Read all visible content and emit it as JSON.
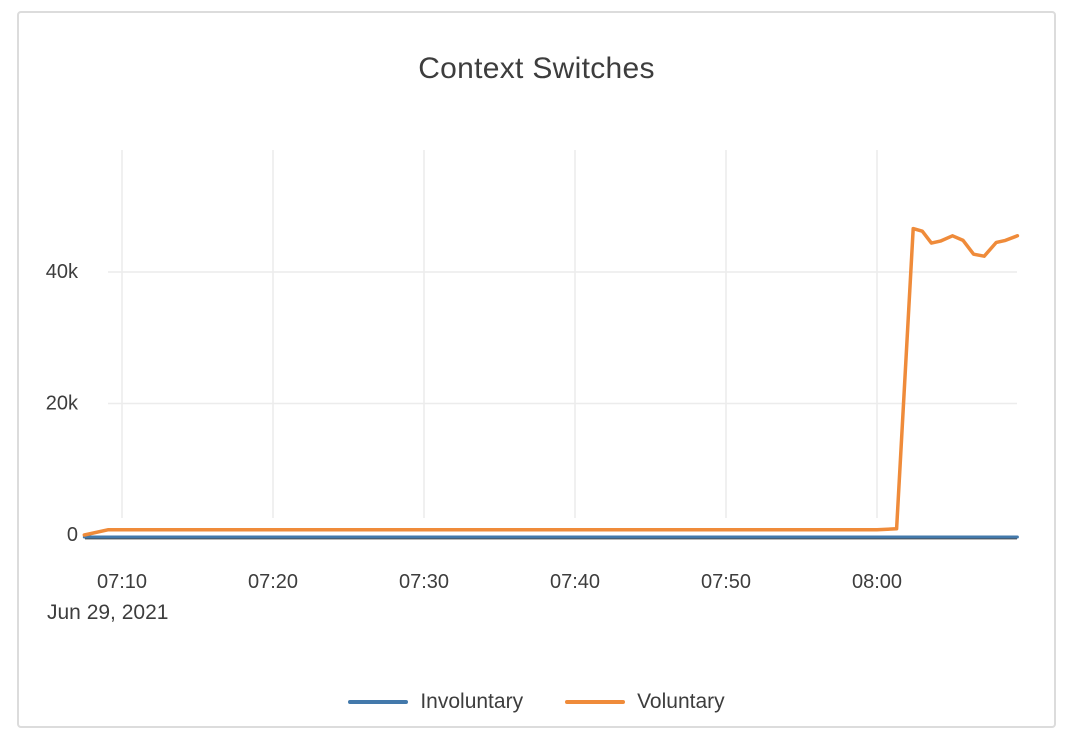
{
  "page": {
    "background": "#ffffff"
  },
  "card": {
    "border_color": "#dcdcdc",
    "background": "#ffffff"
  },
  "chart_data": {
    "type": "line",
    "title": "Context Switches",
    "x_date_label": "Jun 29, 2021",
    "x_unit": "minutes after 07:00, Jun 29 2021",
    "x_ticks": [
      {
        "t": 10,
        "label": "07:10"
      },
      {
        "t": 20,
        "label": "07:20"
      },
      {
        "t": 30,
        "label": "07:30"
      },
      {
        "t": 40,
        "label": "07:40"
      },
      {
        "t": 50,
        "label": "07:50"
      },
      {
        "t": 60,
        "label": "08:00"
      }
    ],
    "y_ticks": [
      {
        "v": 0,
        "label": "0"
      },
      {
        "v": 20000,
        "label": "20k"
      },
      {
        "v": 40000,
        "label": "40k"
      }
    ],
    "x_range": [
      7.5,
      69.3
    ],
    "y_range": [
      0,
      58500
    ],
    "grid": true,
    "legend_position": "bottom-center",
    "colors": {
      "grid": "#ececec",
      "axis_line": "#454545",
      "text": "#3d3d3d"
    },
    "series": [
      {
        "name": "Involuntary",
        "color": "#4379ab",
        "points": [
          [
            7.5,
            0
          ],
          [
            10,
            0
          ],
          [
            15,
            0
          ],
          [
            20,
            0
          ],
          [
            25,
            0
          ],
          [
            30,
            0
          ],
          [
            35,
            0
          ],
          [
            40,
            0
          ],
          [
            45,
            0
          ],
          [
            50,
            0
          ],
          [
            55,
            0
          ],
          [
            60,
            0
          ],
          [
            65,
            0
          ],
          [
            69.3,
            0
          ]
        ]
      },
      {
        "name": "Voluntary",
        "color": "#ef8b3a",
        "points": [
          [
            7.5,
            0
          ],
          [
            9.1,
            800
          ],
          [
            10,
            800
          ],
          [
            15,
            800
          ],
          [
            20,
            800
          ],
          [
            25,
            800
          ],
          [
            30,
            800
          ],
          [
            35,
            800
          ],
          [
            40,
            800
          ],
          [
            45,
            800
          ],
          [
            50,
            800
          ],
          [
            55,
            800
          ],
          [
            60,
            800
          ],
          [
            61.3,
            950
          ],
          [
            62.4,
            46600
          ],
          [
            63.0,
            46200
          ],
          [
            63.6,
            44400
          ],
          [
            64.2,
            44700
          ],
          [
            65.0,
            45500
          ],
          [
            65.7,
            44800
          ],
          [
            66.4,
            42700
          ],
          [
            67.1,
            42400
          ],
          [
            67.9,
            44500
          ],
          [
            68.5,
            44800
          ],
          [
            69.3,
            45500
          ]
        ]
      }
    ]
  }
}
